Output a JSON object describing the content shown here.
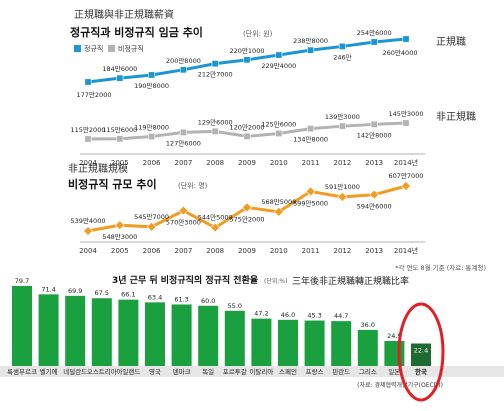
{
  "wage_section": {
    "title_cn": "正規職與非正規職薪資",
    "title_kr": "정규직과 비정규직 임금 추이",
    "unit": "(단위: 원)",
    "legend_regular": "정규직",
    "legend_irregular": "비정규직",
    "label_regular": "正規職",
    "label_irregular": "非正規職"
  },
  "scale_section": {
    "title_cn": "非正規職規模",
    "title_kr": "비정규직 규모 추이",
    "unit": "(단위: 명)",
    "note": "*각 연도 8월 기준 (자료: 통계청)"
  },
  "conversion_section": {
    "title_kr": "3년 근무 뒤 비정규직의 정규직 전환율",
    "unit": "(단위:%)",
    "title_cn": "三年後非正規職轉正規職比率",
    "source": "(자료: 경제협력개발기구(OECD))"
  },
  "colors": {
    "regular": "#1a96d4",
    "irregular": "#b3b3b3",
    "scale": "#f39a21",
    "bar": "#1aa03f",
    "bar_korea": "#1c6b33",
    "highlight": "#e01f26"
  },
  "chart_data": [
    {
      "type": "line",
      "title": "정규직과 비정규직 임금 추이",
      "x": [
        "2004",
        "2005",
        "2006",
        "2007",
        "2008",
        "2009",
        "2010",
        "2011",
        "2012",
        "2013",
        "2014년"
      ],
      "ylim": [
        100,
        260
      ],
      "series": [
        {
          "name": "정규직",
          "values": [
            177.2,
            184.6,
            190.8,
            200.8,
            212.7,
            220.1,
            229.4,
            238.8,
            246.0,
            254.6,
            260.4
          ],
          "labels": [
            "177만2000",
            "184만6000",
            "190만8000",
            "200만8000",
            "212만7000",
            "220만1000",
            "229만4000",
            "238만8000",
            "246만",
            "254만6000",
            "260만4000"
          ]
        },
        {
          "name": "비정규직",
          "values": [
            115.2,
            115.6,
            119.8,
            127.6,
            129.6,
            120.2,
            125.6,
            134.8,
            139.3,
            142.8,
            145.3
          ],
          "labels": [
            "115만2000",
            "115만6000",
            "119만8000",
            "127만6000",
            "129만6000",
            "120만2000",
            "125만6000",
            "134만8000",
            "139만3000",
            "142만8000",
            "145만3000"
          ]
        }
      ]
    },
    {
      "type": "line",
      "title": "비정규직 규모 추이",
      "x": [
        "2004",
        "2005",
        "2006",
        "2007",
        "2008",
        "2009",
        "2010",
        "2011",
        "2012",
        "2013",
        "2014년"
      ],
      "series": [
        {
          "values": [
            539.4,
            548.3,
            545.7,
            570.3,
            544.5,
            575.2,
            568.5,
            599.5,
            591.1,
            594.6,
            607.7
          ],
          "labels": [
            "539만4000",
            "548만3000",
            "545만7000",
            "570만3000",
            "544만5000",
            "575만2000",
            "568만5000",
            "599만5000",
            "591만1000",
            "594만6000",
            "607만7000"
          ]
        }
      ]
    },
    {
      "type": "bar",
      "title": "3년 근무 뒤 비정규직의 정규직 전환율",
      "categories": [
        "룩셈부르크",
        "벨기에",
        "네덜란드",
        "오스트리아",
        "아일랜드",
        "영국",
        "덴마크",
        "독일",
        "포르투갈",
        "이탈리아",
        "스페인",
        "프랑스",
        "핀란드",
        "그리스",
        "일본",
        "한국"
      ],
      "values": [
        79.7,
        71.4,
        69.9,
        67.5,
        66.1,
        63.4,
        61.3,
        60.0,
        55.0,
        47.2,
        46.0,
        45.3,
        44.7,
        36.0,
        24.9,
        22.4
      ],
      "value_labels": [
        "79.7",
        "71.4",
        "69.9",
        "67.5",
        "66.1",
        "63.4",
        "61.3",
        "60.0",
        "55.0",
        "47.2",
        "46.0",
        "45.3",
        "44.7",
        "36.0",
        "24.9",
        "22.4"
      ]
    }
  ]
}
